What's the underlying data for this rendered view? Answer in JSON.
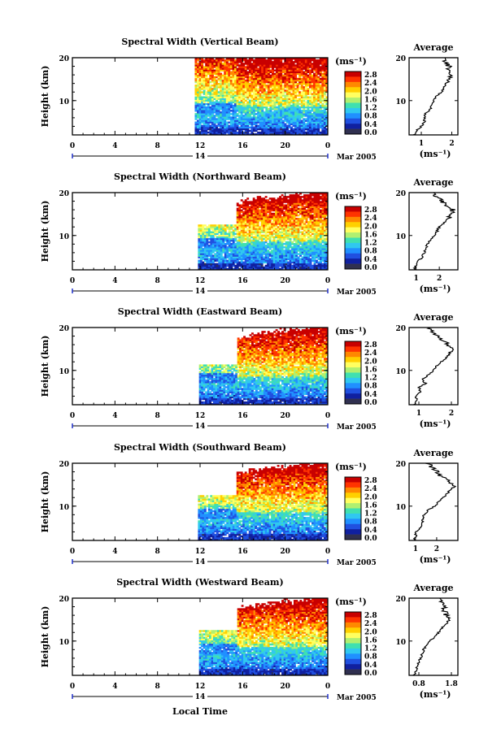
{
  "figure": {
    "xlabel": "Local Time",
    "date_label": "Mar 2005",
    "day_label": "14",
    "avg_title": "Average",
    "unit_label": "(ms⁻¹)",
    "x_ticks": [
      "0",
      "4",
      "8",
      "12",
      "16",
      "20",
      "0"
    ],
    "y_ticks": [
      "20",
      "10"
    ],
    "ylabel": "Height (km)",
    "colorbar_ticks": [
      "2.8",
      "2.4",
      "2.0",
      "1.6",
      "1.2",
      "0.8",
      "0.4",
      "0.0"
    ],
    "colorbar_colors": [
      "#c80000",
      "#ff3300",
      "#ff8800",
      "#ffd000",
      "#ffff60",
      "#b0f070",
      "#40e0b0",
      "#30c8f0",
      "#2090ff",
      "#2050e0",
      "#1020a0",
      "#303050"
    ]
  },
  "chart_data": [
    {
      "type": "heatmap",
      "title": "Spectral Width (Vertical Beam)",
      "xlabel": "Local Time",
      "ylabel": "Height (km)",
      "xlim": [
        0,
        24
      ],
      "ylim": [
        2,
        20
      ],
      "data_start_hour": 11.5,
      "colorbar": {
        "label": "(ms⁻¹)",
        "range": [
          0,
          3.0
        ]
      },
      "average_profile": {
        "title": "Average",
        "xlabel": "(ms⁻¹)",
        "x_ticks": [
          "1",
          "2"
        ],
        "xlim": [
          0.6,
          2.2
        ],
        "heights": [
          2,
          3,
          4,
          5,
          6,
          7,
          8,
          9,
          10,
          11,
          12,
          13,
          14,
          15,
          16,
          17,
          18,
          19,
          20
        ],
        "values": [
          0.75,
          0.85,
          1.0,
          1.1,
          1.1,
          1.15,
          1.3,
          1.35,
          1.4,
          1.5,
          1.65,
          1.75,
          1.8,
          1.85,
          2.0,
          1.85,
          1.9,
          1.75,
          1.8
        ]
      }
    },
    {
      "type": "heatmap",
      "title": "Spectral Width (Northward Beam)",
      "xlabel": "Local Time",
      "ylabel": "Height (km)",
      "xlim": [
        0,
        24
      ],
      "ylim": [
        2,
        20
      ],
      "data_start_hour": 11.8,
      "colorbar": {
        "label": "(ms⁻¹)",
        "range": [
          0,
          3.0
        ]
      },
      "average_profile": {
        "title": "Average",
        "xlabel": "(ms⁻¹)",
        "x_ticks": [
          "1",
          "2"
        ],
        "xlim": [
          0.7,
          2.8
        ],
        "heights": [
          2,
          3,
          4,
          5,
          6,
          7,
          8,
          9,
          10,
          11,
          12,
          13,
          14,
          15,
          16,
          17,
          18,
          19,
          20
        ],
        "values": [
          0.9,
          1.0,
          1.1,
          1.25,
          1.35,
          1.4,
          1.5,
          1.6,
          1.8,
          1.9,
          2.0,
          2.2,
          2.4,
          2.5,
          2.6,
          2.3,
          2.1,
          1.9,
          1.8
        ]
      }
    },
    {
      "type": "heatmap",
      "title": "Spectral Width (Eastward Beam)",
      "xlabel": "Local Time",
      "ylabel": "Height (km)",
      "xlim": [
        0,
        24
      ],
      "ylim": [
        2,
        20
      ],
      "data_start_hour": 11.9,
      "colorbar": {
        "label": "(ms⁻¹)",
        "range": [
          0,
          3.0
        ]
      },
      "average_profile": {
        "title": "Average",
        "xlabel": "(ms⁻¹)",
        "x_ticks": [
          "1",
          "2"
        ],
        "xlim": [
          0.7,
          2.2
        ],
        "heights": [
          2,
          3,
          4,
          5,
          6,
          7,
          8,
          9,
          10,
          11,
          12,
          13,
          14,
          15,
          16,
          17,
          18,
          19,
          20
        ],
        "values": [
          0.85,
          0.95,
          0.9,
          1.05,
          1.0,
          1.2,
          1.1,
          1.3,
          1.45,
          1.55,
          1.7,
          1.85,
          1.95,
          2.0,
          1.9,
          1.75,
          1.6,
          1.4,
          1.3
        ]
      }
    },
    {
      "type": "heatmap",
      "title": "Spectral Width (Southward Beam)",
      "xlabel": "Local Time",
      "ylabel": "Height (km)",
      "xlim": [
        0,
        24
      ],
      "ylim": [
        2,
        20
      ],
      "data_start_hour": 11.8,
      "colorbar": {
        "label": "(ms⁻¹)",
        "range": [
          0,
          3.0
        ]
      },
      "average_profile": {
        "title": "Average",
        "xlabel": "(ms⁻¹)",
        "x_ticks": [
          "1",
          "2"
        ],
        "xlim": [
          0.7,
          3.0
        ],
        "heights": [
          2,
          3,
          4,
          5,
          6,
          7,
          8,
          9,
          10,
          11,
          12,
          13,
          14,
          15,
          16,
          17,
          18,
          19,
          20
        ],
        "values": [
          0.9,
          1.0,
          1.05,
          1.2,
          1.3,
          1.35,
          1.4,
          1.6,
          1.9,
          2.1,
          2.3,
          2.5,
          2.7,
          2.8,
          2.5,
          2.2,
          2.0,
          1.8,
          1.6
        ]
      }
    },
    {
      "type": "heatmap",
      "title": "Spectral Width (Westward Beam)",
      "xlabel": "Local Time",
      "ylabel": "Height (km)",
      "xlim": [
        0,
        24
      ],
      "ylim": [
        2,
        20
      ],
      "data_start_hour": 11.9,
      "colorbar": {
        "label": "(ms⁻¹)",
        "range": [
          0,
          3.0
        ]
      },
      "average_profile": {
        "title": "Average",
        "xlabel": "(ms⁻¹)",
        "x_ticks": [
          "0.8",
          "1.8"
        ],
        "xlim": [
          0.5,
          2.0
        ],
        "heights": [
          2,
          3,
          4,
          5,
          6,
          7,
          8,
          9,
          10,
          11,
          12,
          13,
          14,
          15,
          16,
          17,
          18,
          19,
          20
        ],
        "values": [
          0.65,
          0.7,
          0.75,
          0.8,
          0.85,
          0.9,
          0.95,
          1.05,
          1.15,
          1.3,
          1.4,
          1.5,
          1.6,
          1.7,
          1.65,
          1.6,
          1.55,
          1.5,
          1.45
        ]
      }
    }
  ]
}
